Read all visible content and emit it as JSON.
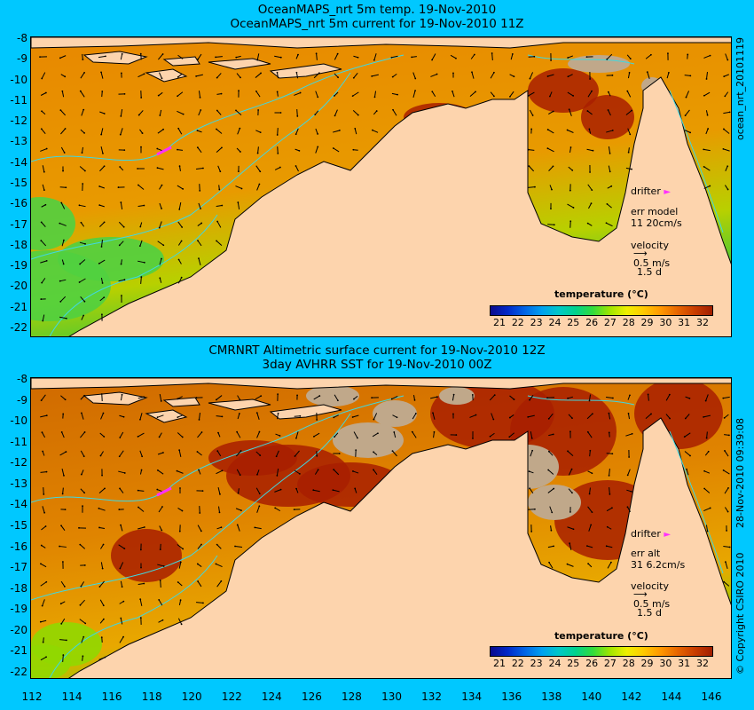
{
  "panels": [
    {
      "title1": "OceanMAPS_nrt 5m temp. 19-Nov-2010",
      "title2": "OceanMAPS_nrt 5m current for 19-Nov-2010 11Z",
      "drifter_label": "drifter",
      "err_label": "err model",
      "err_value": "11 20cm/s",
      "velocity_label": "velocity",
      "velocity_value": "0.5 m/s",
      "velocity_days": "1.5 d",
      "colorbar_title": "temperature (°C)",
      "side_label": "ocean_nrt_20101119"
    },
    {
      "title1": "CMRNRT Altimetric surface current for 19-Nov-2010 12Z",
      "title2": "3day AVHRR SST for 19-Nov-2010 00Z",
      "drifter_label": "drifter",
      "err_label": "err alt",
      "err_value": "31 6.2cm/s",
      "velocity_label": "velocity",
      "velocity_value": "0.5 m/s",
      "velocity_days": "1.5 d",
      "colorbar_title": "temperature (°C)",
      "side_label": "28-Nov-2010 09:39:08"
    }
  ],
  "copyright": "© Copyright CSIRO 2010",
  "lat_ticks": [
    "-8",
    "-9",
    "-10",
    "-11",
    "-12",
    "-13",
    "-14",
    "-15",
    "-16",
    "-17",
    "-18",
    "-19",
    "-20",
    "-21",
    "-22"
  ],
  "lon_ticks": [
    "112",
    "114",
    "116",
    "118",
    "120",
    "122",
    "124",
    "126",
    "128",
    "130",
    "132",
    "134",
    "136",
    "138",
    "140",
    "142",
    "144",
    "146"
  ],
  "colorbar_ticks": [
    "21",
    "22",
    "23",
    "24",
    "25",
    "26",
    "27",
    "28",
    "29",
    "30",
    "31",
    "32"
  ],
  "colorbar_colors": [
    "#0a0a8c",
    "#0028c8",
    "#0064e6",
    "#00a0f0",
    "#00c8c8",
    "#00d28c",
    "#32dc3c",
    "#a0e600",
    "#f0f000",
    "#ffc800",
    "#ff9600",
    "#e66400",
    "#c83c00",
    "#a01e00"
  ],
  "colors": {
    "background": "#00c8ff",
    "land": "#fdd4ad",
    "sea_warm": "#e88a00",
    "sea_hot": "#a81e00",
    "sea_cool": "#7ad200",
    "reef": "#c0a88a",
    "contour": "#40d8e0",
    "drifter": "#ff30ff"
  }
}
